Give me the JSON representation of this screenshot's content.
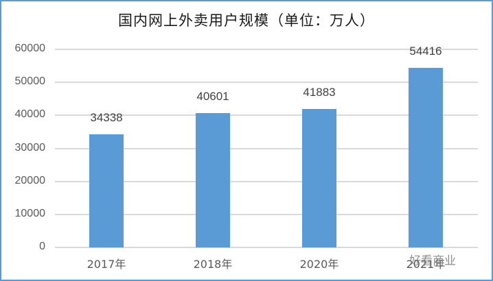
{
  "chart_data": {
    "type": "bar",
    "title": "国内网上外卖用户规模（单位：万人）",
    "categories": [
      "2017年",
      "2018年",
      "2020年",
      "2021年"
    ],
    "values": [
      34338,
      40601,
      41883,
      54416
    ],
    "xlabel": "",
    "ylabel": "",
    "ylim": [
      0,
      60000
    ],
    "yticks": [
      "60000",
      "50000",
      "40000",
      "30000",
      "20000",
      "10000",
      "0"
    ],
    "grid": true,
    "legend": "none",
    "bar_color": "#5b9bd5",
    "data_labels": [
      "34338",
      "40601",
      "41883",
      "54416"
    ]
  },
  "watermark": "好看商业",
  "frame_color": "#5b9bd5"
}
